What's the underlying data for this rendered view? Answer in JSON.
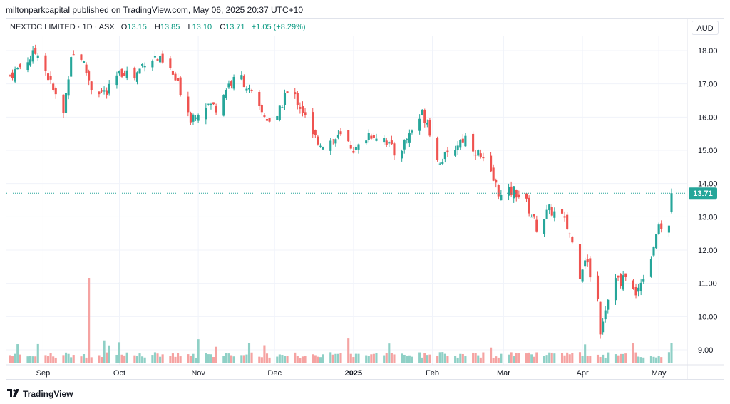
{
  "header": {
    "published": "miltonparkcapital published on TradingView.com, May 06, 2025 20:37 UTC+10"
  },
  "legend": {
    "symbol": "NEXTDC LIMITED · 1D · ASX",
    "o_label": "O",
    "o_value": "13.15",
    "h_label": "H",
    "h_value": "13.85",
    "l_label": "L",
    "l_value": "13.10",
    "c_label": "C",
    "c_value": "13.71",
    "change": "+1.05 (+8.29%)"
  },
  "currency": "AUD",
  "last_price": "13.71",
  "footer": {
    "brand": "TradingView",
    "logo_icon": "tradingview-logo-icon"
  },
  "colors": {
    "up": "#26a69a",
    "down": "#ef5350",
    "up_vol": "#8fd0c6",
    "down_vol": "#f5a3a2",
    "last_line": "#26a69a"
  },
  "chart_data": {
    "type": "candlestick",
    "title": "NEXTDC LIMITED · 1D · ASX",
    "y_axis_ticks": [
      "9.00",
      "10.00",
      "11.00",
      "12.00",
      "13.00",
      "14.00",
      "15.00",
      "16.00",
      "17.00",
      "18.00"
    ],
    "ylim": [
      8.55,
      18.45
    ],
    "x_axis_ticks": [
      "Sep",
      "Oct",
      "Nov",
      "Dec",
      "2025",
      "Feb",
      "Mar",
      "Apr",
      "May"
    ],
    "x_axis_tick_dates": [
      "2024-09-01",
      "2024-10-01",
      "2024-11-01",
      "2024-12-01",
      "2025-01-01",
      "2025-02-01",
      "2025-03-01",
      "2025-04-01",
      "2025-05-01"
    ],
    "date_range": [
      "2024-08-19",
      "2025-05-06"
    ],
    "last_value": 13.71,
    "grid": true,
    "series_close": [
      [
        "2024-08-19",
        17.25
      ],
      [
        "2024-08-30",
        18.0
      ],
      [
        "2024-09-05",
        16.8
      ],
      [
        "2024-09-09",
        16.1
      ],
      [
        "2024-09-12",
        17.9
      ],
      [
        "2024-09-16",
        17.8
      ],
      [
        "2024-09-20",
        16.9
      ],
      [
        "2024-09-26",
        16.7
      ],
      [
        "2024-09-30",
        17.2
      ],
      [
        "2024-10-03",
        17.4
      ],
      [
        "2024-10-07",
        17.2
      ],
      [
        "2024-10-11",
        17.7
      ],
      [
        "2024-10-15",
        17.8
      ],
      [
        "2024-10-21",
        17.4
      ],
      [
        "2024-10-25",
        16.8
      ],
      [
        "2024-10-29",
        16.0
      ],
      [
        "2024-11-04",
        16.4
      ],
      [
        "2024-11-08",
        16.3
      ],
      [
        "2024-11-13",
        17.0
      ],
      [
        "2024-11-18",
        17.2
      ],
      [
        "2024-11-25",
        16.2
      ],
      [
        "2024-11-29",
        15.9
      ],
      [
        "2024-12-02",
        15.9
      ],
      [
        "2024-12-05",
        16.7
      ],
      [
        "2024-12-09",
        16.6
      ],
      [
        "2024-12-12",
        16.2
      ],
      [
        "2024-12-16",
        15.4
      ],
      [
        "2024-12-20",
        15.2
      ],
      [
        "2024-12-27",
        15.4
      ],
      [
        "2025-01-02",
        15.0
      ],
      [
        "2025-01-07",
        15.5
      ],
      [
        "2025-01-13",
        15.4
      ],
      [
        "2025-01-17",
        14.9
      ],
      [
        "2025-01-20",
        15.1
      ],
      [
        "2025-01-23",
        15.5
      ],
      [
        "2025-01-28",
        16.1
      ],
      [
        "2025-01-30",
        15.9
      ],
      [
        "2025-02-03",
        14.7
      ],
      [
        "2025-02-07",
        14.8
      ],
      [
        "2025-02-12",
        15.3
      ],
      [
        "2025-02-14",
        15.4
      ],
      [
        "2025-02-19",
        14.9
      ],
      [
        "2025-02-25",
        14.1
      ],
      [
        "2025-02-28",
        13.6
      ],
      [
        "2025-03-05",
        13.8
      ],
      [
        "2025-03-10",
        13.4
      ],
      [
        "2025-03-14",
        12.7
      ],
      [
        "2025-03-19",
        13.2
      ],
      [
        "2025-03-24",
        13.0
      ],
      [
        "2025-03-27",
        12.5
      ],
      [
        "2025-03-31",
        11.3
      ],
      [
        "2025-04-02",
        11.8
      ],
      [
        "2025-04-07",
        10.5
      ],
      [
        "2025-04-08",
        9.6
      ],
      [
        "2025-04-10",
        10.3
      ],
      [
        "2025-04-14",
        11.3
      ],
      [
        "2025-04-16",
        10.9
      ],
      [
        "2025-04-18",
        11.3
      ],
      [
        "2025-04-22",
        10.6
      ],
      [
        "2025-04-24",
        11.1
      ],
      [
        "2025-04-28",
        11.8
      ],
      [
        "2025-04-30",
        12.5
      ],
      [
        "2025-05-02",
        12.7
      ],
      [
        "2025-05-05",
        12.66
      ],
      [
        "2025-05-06",
        13.71
      ]
    ]
  }
}
